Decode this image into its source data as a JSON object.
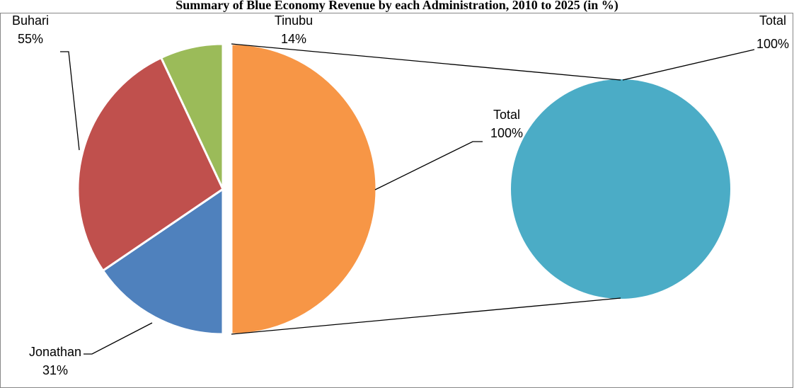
{
  "chart_data": {
    "type": "pie-of-pie",
    "title": "Summary of Blue Economy Revenue by each Administration, 2010 to 2025 (in %)",
    "categories": [
      "Total",
      "Jonathan",
      "Buhari",
      "Tinubu"
    ],
    "values": [
      100,
      31,
      55,
      14
    ],
    "value_labels": [
      "100%",
      "31%",
      "55%",
      "14%"
    ],
    "colors": [
      "#f79646",
      "#4f81bd",
      "#c0504d",
      "#9bbb59"
    ],
    "secondary": {
      "categories": [
        "Total"
      ],
      "values": [
        100
      ],
      "value_labels": [
        "100%"
      ],
      "colors": [
        "#4bacc6"
      ]
    }
  }
}
